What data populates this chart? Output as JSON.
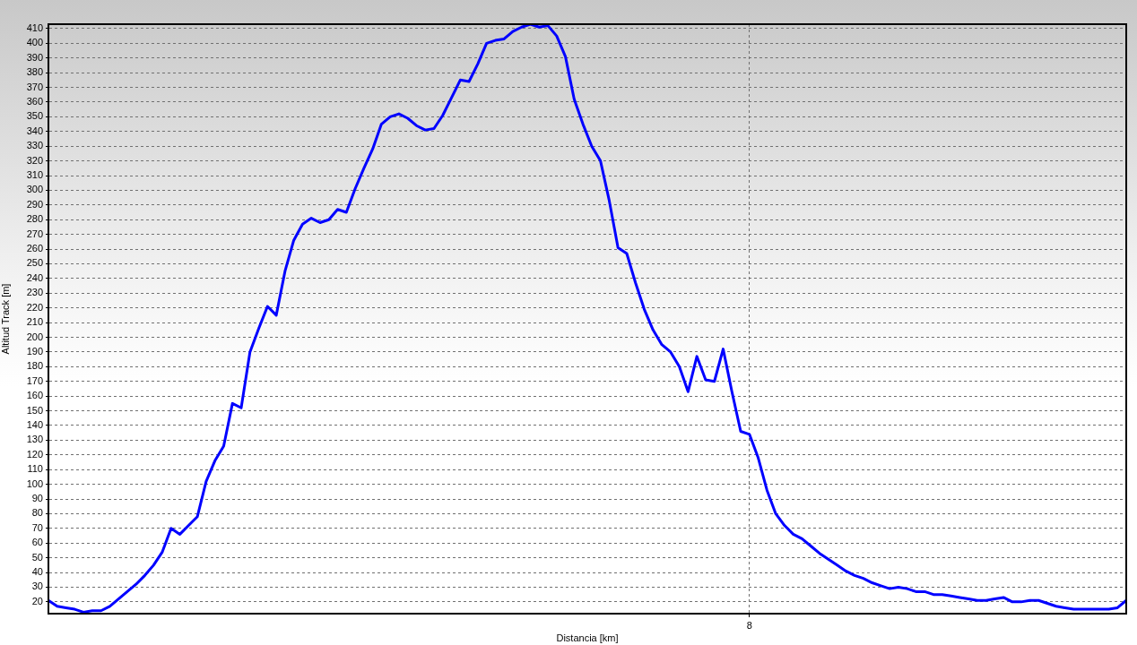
{
  "chart_data": {
    "type": "line",
    "xlabel": "Distancia [km]",
    "ylabel": "Altitud Track [m]",
    "categories": [
      null,
      null,
      null,
      null,
      null,
      null,
      null,
      null,
      null,
      null,
      null,
      null,
      null,
      null,
      null,
      null,
      null,
      null,
      null,
      null,
      null,
      null,
      null,
      null,
      null,
      null,
      null,
      null,
      null,
      null,
      null,
      null,
      null,
      null,
      null,
      null,
      null,
      null,
      null,
      null,
      null,
      null,
      null,
      null,
      null,
      null,
      null,
      null,
      null,
      null,
      null,
      null,
      null,
      null,
      null,
      null,
      null,
      null,
      null,
      null,
      null,
      null,
      null,
      null,
      null,
      null,
      null,
      null,
      null,
      null,
      null,
      null,
      null,
      null,
      null,
      null,
      null,
      null,
      null,
      null,
      "8",
      null,
      null,
      null,
      null,
      null,
      null,
      null,
      null,
      null,
      null,
      null,
      null,
      null,
      null,
      null,
      null,
      null,
      null,
      null,
      null,
      null,
      null,
      null,
      null,
      null,
      null,
      null,
      null,
      null,
      null,
      null,
      null,
      null,
      null,
      null,
      null,
      null,
      null,
      null,
      null,
      null,
      null,
      null
    ],
    "series": [
      {
        "color": "#0000ff",
        "values": [
          21,
          17,
          16,
          15,
          13,
          14,
          14,
          17,
          22,
          27,
          32,
          38,
          45,
          54,
          70,
          66,
          72,
          78,
          102,
          116,
          126,
          155,
          152,
          190,
          206,
          221,
          215,
          245,
          266,
          277,
          281,
          278,
          280,
          287,
          285,
          301,
          315,
          328,
          345,
          350,
          352,
          349,
          344,
          341,
          342,
          351,
          363,
          375,
          374,
          386,
          400,
          402,
          403,
          408,
          411,
          413,
          411,
          412,
          405,
          391,
          362,
          345,
          330,
          320,
          293,
          261,
          257,
          237,
          219,
          205,
          195,
          190,
          180,
          163,
          187,
          171,
          170,
          192,
          163,
          136,
          134,
          118,
          96,
          80,
          72,
          66,
          63,
          58,
          53,
          49,
          45,
          41,
          38,
          36,
          33,
          31,
          29,
          30,
          29,
          27,
          27,
          25,
          25,
          24,
          23,
          22,
          21,
          21,
          22,
          23,
          20,
          20,
          21,
          21,
          19,
          17,
          16,
          15,
          15,
          15,
          15,
          15,
          16,
          21
        ]
      }
    ],
    "ylim": [
      12,
      413
    ],
    "yticks": [
      20,
      30,
      40,
      50,
      60,
      70,
      80,
      90,
      100,
      110,
      120,
      130,
      140,
      150,
      160,
      170,
      180,
      190,
      200,
      210,
      220,
      230,
      240,
      250,
      260,
      270,
      280,
      290,
      300,
      310,
      320,
      330,
      340,
      350,
      360,
      370,
      380,
      390,
      400,
      410
    ],
    "grid": true,
    "legend": false,
    "marker": "none",
    "line_style": "solid"
  }
}
